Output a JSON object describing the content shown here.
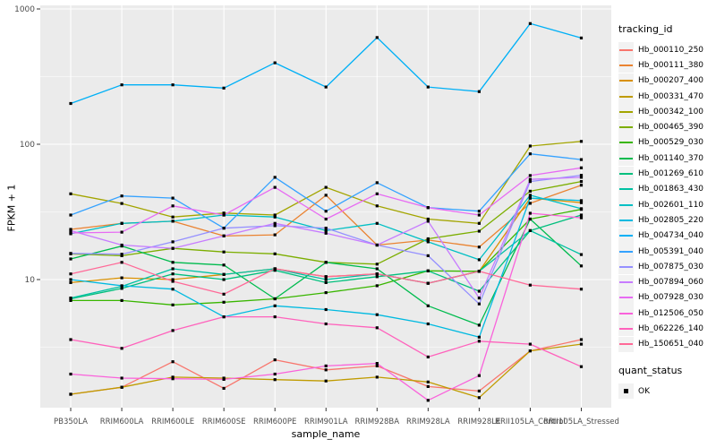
{
  "chart_data": {
    "type": "line",
    "title": "",
    "xlabel": "sample_name",
    "ylabel": "FPKM + 1",
    "y_scale": "log10",
    "ylim": [
      1.1,
      1100
    ],
    "y_ticks": {
      "labels": [
        "1000",
        "100",
        "10"
      ],
      "values": [
        1000,
        100,
        10
      ]
    },
    "y_minor_values": [
      316.23,
      31.62,
      3.162
    ],
    "grid": "major-and-minor-horizontal, major-vertical",
    "legend_position": "right",
    "point_marker": "small-black-square",
    "categories": [
      "PB350LA",
      "RRIM600LA",
      "RRIM600LE",
      "RRIM600SE",
      "RRIM600PE",
      "RRIM901LA",
      "RRIM928BA",
      "RRIM928LA",
      "RRIM928LE",
      "RRII105LA_Control",
      "RRII105LA_Stressed"
    ],
    "series": [
      {
        "name": "Hb_000110_250",
        "color": "#F8766D",
        "values": [
          1.42,
          1.6,
          2.47,
          1.57,
          2.55,
          2.15,
          2.3,
          1.62,
          1.5,
          2.97,
          3.6
        ]
      },
      {
        "name": "Hb_000111_380",
        "color": "#EA8331",
        "values": [
          23.5,
          26,
          27,
          21,
          21.4,
          42,
          18,
          19.6,
          17.4,
          36.6,
          49.8
        ]
      },
      {
        "name": "Hb_000207_400",
        "color": "#D89000",
        "values": [
          9.5,
          10.3,
          10,
          10.9,
          12,
          10.5,
          11,
          9.4,
          11.5,
          40,
          37
        ]
      },
      {
        "name": "Hb_000331_470",
        "color": "#C09B00",
        "values": [
          1.42,
          1.6,
          1.9,
          1.87,
          1.82,
          1.78,
          1.9,
          1.75,
          1.34,
          2.97,
          3.33
        ]
      },
      {
        "name": "Hb_000342_100",
        "color": "#A3A500",
        "values": [
          43,
          36.5,
          29,
          31,
          30,
          48,
          35,
          28,
          26,
          97,
          105
        ]
      },
      {
        "name": "Hb_000465_390",
        "color": "#7CAE00",
        "values": [
          15.5,
          15,
          17,
          16,
          15.5,
          13.4,
          13,
          20,
          22.8,
          45,
          53
        ]
      },
      {
        "name": "Hb_000529_030",
        "color": "#39B600",
        "values": [
          7.0,
          7.0,
          6.5,
          6.8,
          7.2,
          8.0,
          9.0,
          11.6,
          11.5,
          28,
          33
        ]
      },
      {
        "name": "Hb_001140_370",
        "color": "#00BB4E",
        "values": [
          14.2,
          17.7,
          13.4,
          12.8,
          7.2,
          13.4,
          12,
          6.4,
          4.6,
          28,
          12.6
        ]
      },
      {
        "name": "Hb_001269_610",
        "color": "#00BF7D",
        "values": [
          7.2,
          8.6,
          11,
          10,
          11.7,
          9.5,
          10.5,
          11.6,
          8.2,
          23,
          30
        ]
      },
      {
        "name": "Hb_001863_430",
        "color": "#00C1A3",
        "values": [
          7.3,
          8.9,
          12,
          10.9,
          12,
          10,
          11,
          9.4,
          11.5,
          23,
          15.3
        ]
      },
      {
        "name": "Hb_002601_110",
        "color": "#00BFC4",
        "values": [
          21.8,
          26,
          27,
          30,
          29,
          23,
          26,
          19,
          14,
          42,
          33.4
        ]
      },
      {
        "name": "Hb_002805_220",
        "color": "#00BAE0",
        "values": [
          10,
          9,
          8.5,
          5.3,
          6.4,
          6.0,
          5.5,
          4.7,
          3.75,
          40,
          38.3
        ]
      },
      {
        "name": "Hb_004734_040",
        "color": "#00B0F6",
        "values": [
          200,
          275,
          275,
          260,
          400,
          265,
          615,
          265,
          245,
          780,
          610
        ]
      },
      {
        "name": "Hb_005391_040",
        "color": "#35A2FF",
        "values": [
          30,
          41.5,
          40,
          24,
          57,
          32,
          52,
          34,
          32,
          85,
          77
        ]
      },
      {
        "name": "Hb_007875_030",
        "color": "#9590FF",
        "values": [
          15.6,
          15.4,
          19,
          24,
          25,
          24,
          18,
          15,
          6.6,
          53,
          59
        ]
      },
      {
        "name": "Hb_007894_060",
        "color": "#C77CFF",
        "values": [
          23,
          18,
          17,
          21,
          26,
          22,
          18,
          27,
          7.3,
          55,
          57
        ]
      },
      {
        "name": "Hb_007928_030",
        "color": "#E76BF3",
        "values": [
          22.1,
          22.4,
          35,
          30,
          48,
          28,
          43,
          34,
          30,
          58.7,
          67
        ]
      },
      {
        "name": "Hb_012506_050",
        "color": "#FA62DB",
        "values": [
          2.0,
          1.87,
          1.85,
          1.83,
          2.0,
          2.3,
          2.4,
          1.28,
          1.95,
          30.9,
          28.6
        ]
      },
      {
        "name": "Hb_062226_140",
        "color": "#FF62BC",
        "values": [
          3.6,
          3.1,
          4.2,
          5.3,
          5.3,
          4.7,
          4.4,
          2.68,
          3.5,
          3.33,
          2.27
        ]
      },
      {
        "name": "Hb_150651_040",
        "color": "#FF6A98",
        "values": [
          11,
          13.4,
          9.7,
          7.8,
          12,
          10.5,
          11,
          9.4,
          11.5,
          9.1,
          8.5
        ]
      }
    ]
  },
  "legend": {
    "title": "tracking_id"
  },
  "legend2": {
    "title": "quant_status",
    "items": [
      {
        "label": "OK",
        "marker": "black-square"
      }
    ]
  },
  "colors": {
    "panel_bg": "#EBEBEB",
    "grid": "#FFFFFF",
    "tick_text": "#4D4D4D",
    "tick_mark": "#333333",
    "axis_title_text": "#000000",
    "point": "#000000",
    "legend_key_bg": "#F2F2F2"
  }
}
